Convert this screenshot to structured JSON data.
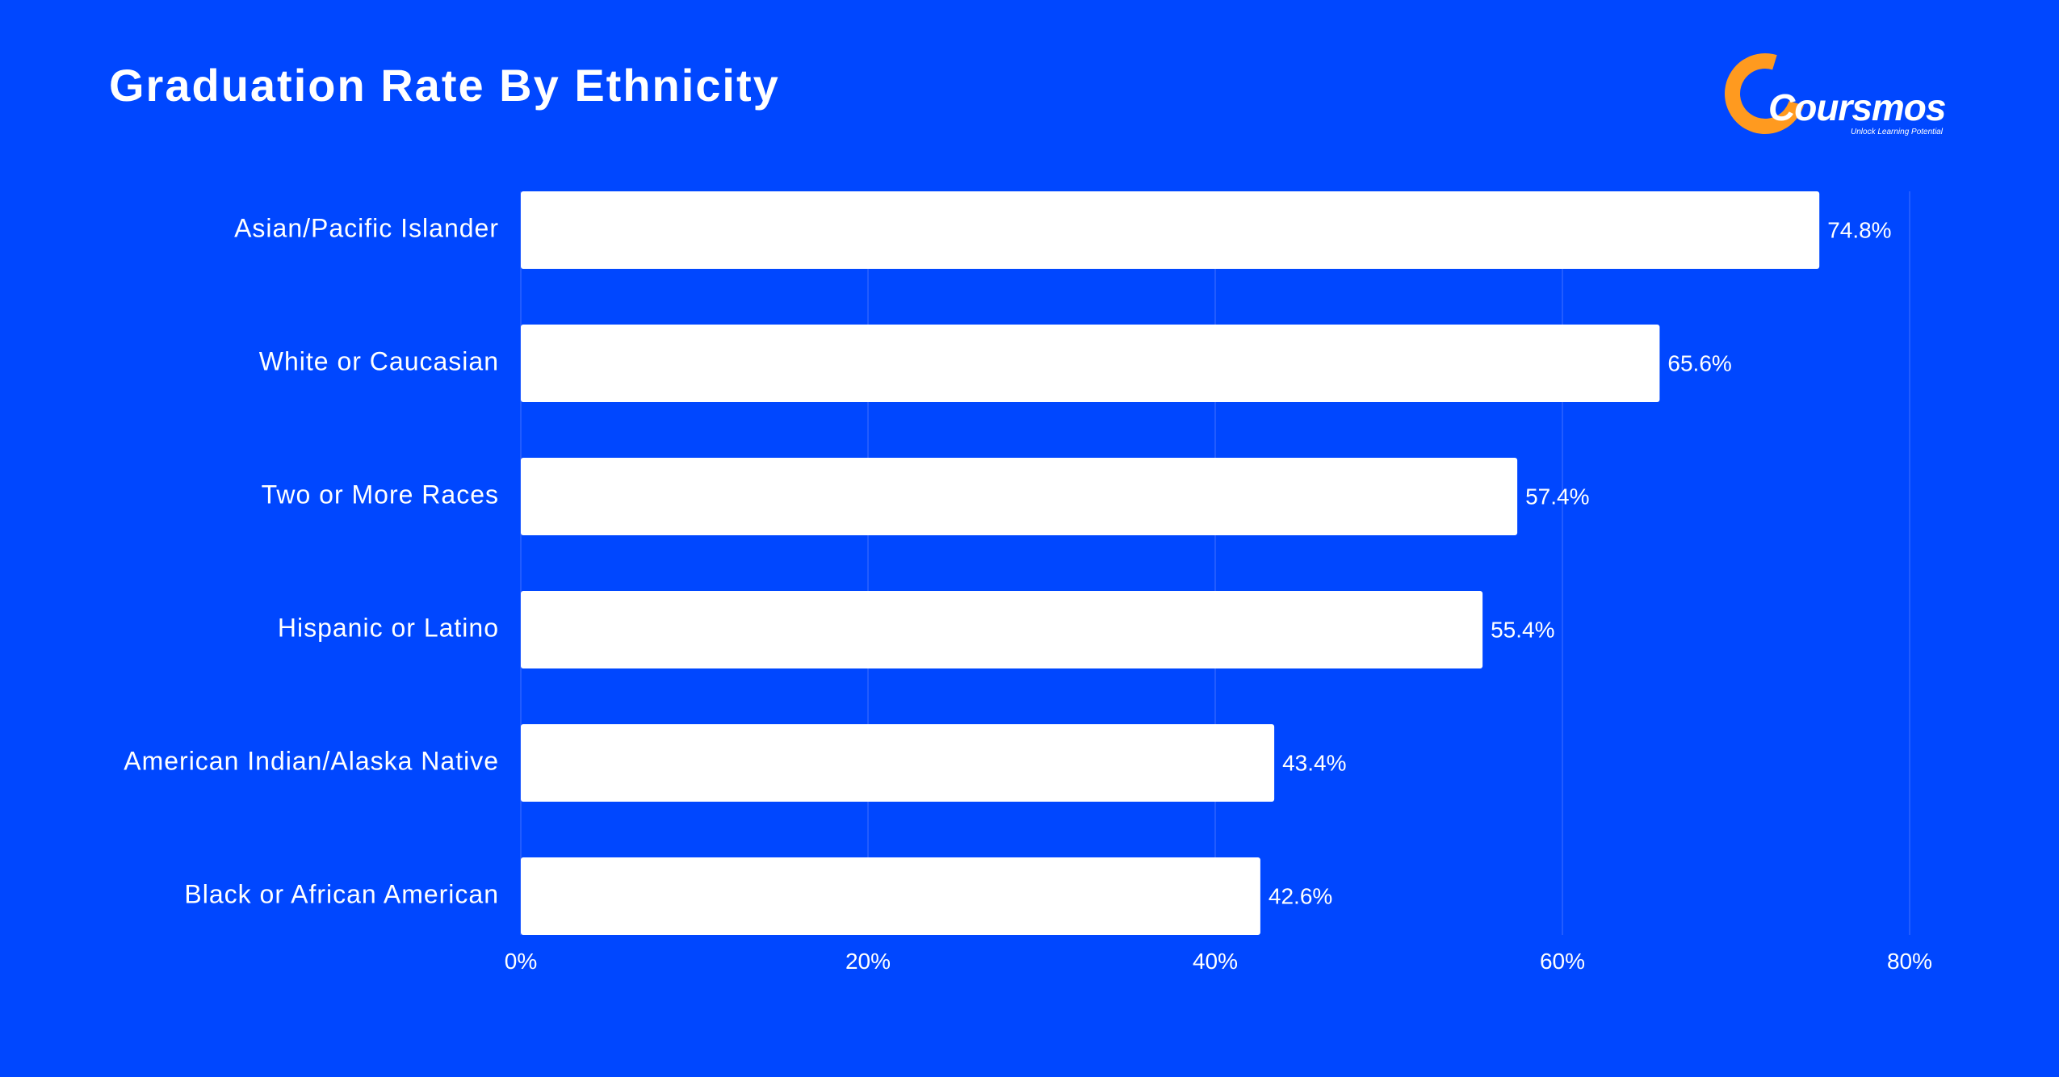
{
  "logo": {
    "wordmark": "Coursmos",
    "tagline": "Unlock Learning Potential",
    "accent_color": "#FF9A1F"
  },
  "colors": {
    "background": "#0047FF",
    "bar": "#FFFFFF",
    "text": "#FFFFFF",
    "grid": "#2E63FF"
  },
  "chart_data": {
    "type": "bar",
    "orientation": "horizontal",
    "title": "Graduation Rate By Ethnicity",
    "categories": [
      "Asian/Pacific Islander",
      "White or Caucasian",
      "Two or More Races",
      "Hispanic or Latino",
      "American Indian/Alaska Native",
      "Black or African American"
    ],
    "values": [
      74.8,
      65.6,
      57.4,
      55.4,
      43.4,
      42.6
    ],
    "value_labels": [
      "74.8%",
      "65.6%",
      "57.4%",
      "55.4%",
      "43.4%",
      "42.6%"
    ],
    "xlim": [
      0,
      80
    ],
    "x_ticks": [
      0,
      20,
      40,
      60,
      80
    ],
    "x_tick_labels": [
      "0%",
      "20%",
      "40%",
      "60%",
      "80%"
    ],
    "grid": "vertical",
    "legend": "none"
  }
}
